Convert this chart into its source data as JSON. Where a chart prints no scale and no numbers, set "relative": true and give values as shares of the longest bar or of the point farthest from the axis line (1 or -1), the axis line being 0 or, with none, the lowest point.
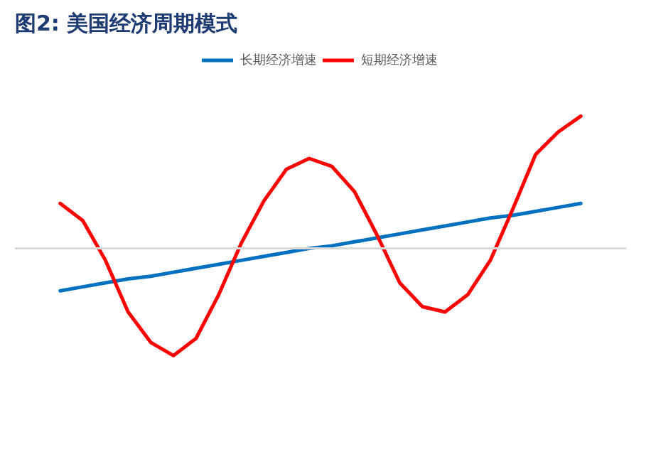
{
  "chart_data": {
    "type": "line",
    "title": "图2:    美国经济周期模式",
    "relative": true,
    "legend": "top",
    "categories": [
      null,
      null,
      null,
      null,
      null,
      null,
      null,
      null,
      null,
      null,
      null,
      null,
      null,
      null,
      null,
      null,
      null,
      null,
      null,
      null,
      null,
      null,
      null,
      null
    ],
    "series": [
      {
        "name": "长期经济增速",
        "color": "#0070c0",
        "values": [
          -0.32,
          -0.29,
          -0.26,
          -0.23,
          -0.21,
          -0.18,
          -0.15,
          -0.12,
          -0.09,
          -0.06,
          -0.03,
          0.0,
          0.02,
          0.05,
          0.08,
          0.11,
          0.14,
          0.17,
          0.2,
          0.23,
          0.25,
          0.28,
          0.31,
          0.34
        ]
      },
      {
        "name": "短期经济增速",
        "color": "#ff0000",
        "values": [
          0.34,
          0.21,
          -0.09,
          -0.48,
          -0.71,
          -0.81,
          -0.68,
          -0.35,
          0.04,
          0.36,
          0.6,
          0.68,
          0.62,
          0.43,
          0.1,
          -0.26,
          -0.44,
          -0.48,
          -0.35,
          -0.09,
          0.3,
          0.71,
          0.88,
          1.0
        ]
      }
    ]
  }
}
